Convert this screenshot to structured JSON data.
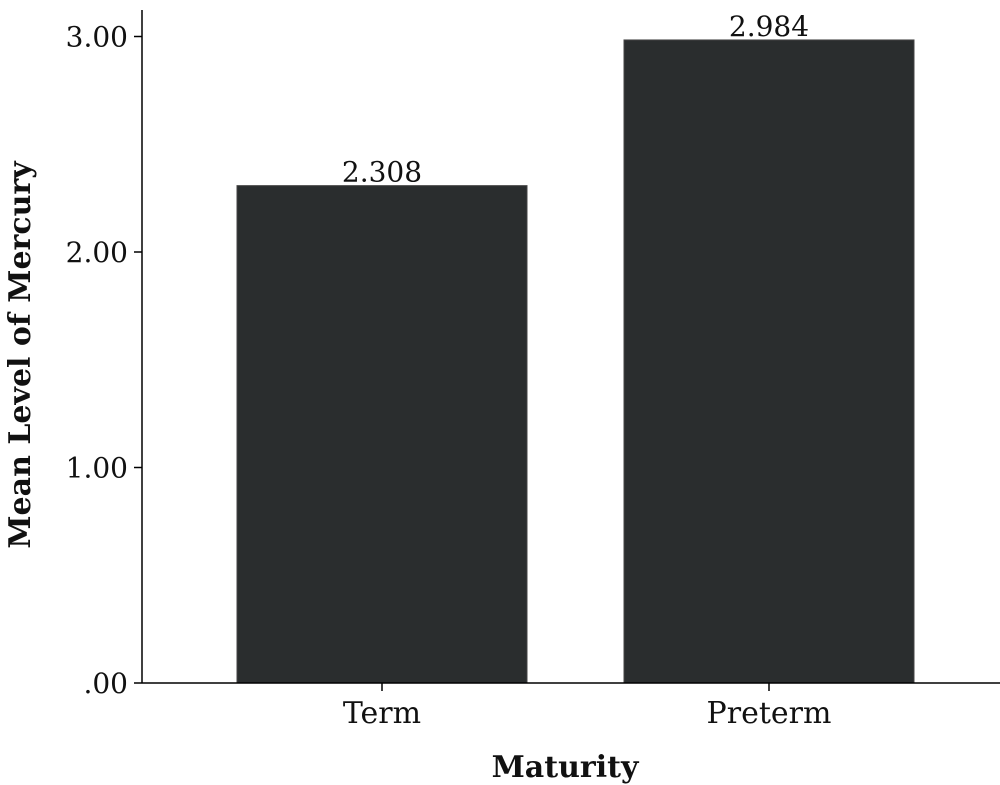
{
  "chart_data": {
    "type": "bar",
    "categories": [
      "Term",
      "Preterm"
    ],
    "values": [
      2.308,
      2.984
    ],
    "data_labels": [
      "2.308",
      "2.984"
    ],
    "title": "",
    "xlabel": "Maturity",
    "ylabel": "Mean Level of Mercury",
    "ylim": [
      0,
      3.12
    ],
    "yticks": [
      0,
      1,
      2,
      3
    ],
    "ytick_labels": [
      ".00",
      "1.00",
      "2.00",
      "3.00"
    ],
    "grid": false,
    "legend": "none",
    "bar_color": "#2a2d2e"
  }
}
